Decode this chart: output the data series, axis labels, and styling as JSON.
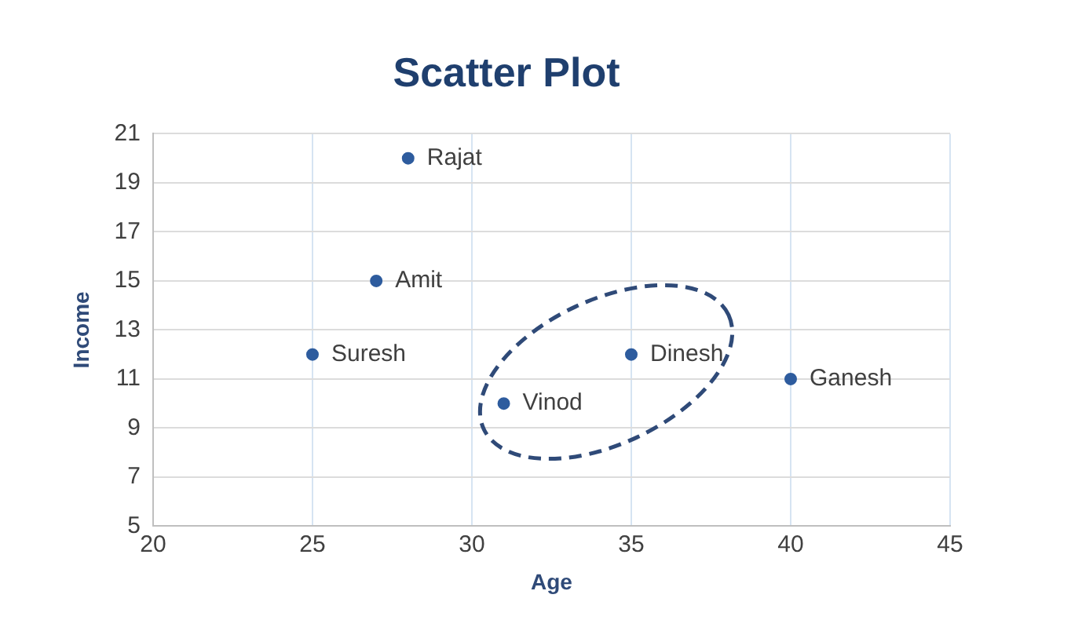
{
  "chart_data": {
    "type": "scatter",
    "title": "Scatter Plot",
    "xlabel": "Age",
    "ylabel": "Income",
    "x": [
      28,
      27,
      25,
      35,
      31,
      40
    ],
    "series": [
      {
        "color": "#2e5c9e",
        "values": [
          20,
          15,
          12,
          12,
          10,
          11
        ]
      }
    ],
    "xlim": [
      20,
      45
    ],
    "xticks": [
      20,
      25,
      30,
      35,
      40,
      45
    ],
    "ylim": [
      5,
      21
    ],
    "yticks": [
      5,
      7,
      9,
      11,
      13,
      15,
      17,
      19,
      21
    ],
    "grid": true,
    "legend": false,
    "marker": "circle",
    "annotations": [
      {
        "text": "Rajat",
        "x": 28,
        "y": 20
      },
      {
        "text": "Amit",
        "x": 27,
        "y": 15
      },
      {
        "text": "Suresh",
        "x": 25,
        "y": 12
      },
      {
        "text": "Dinesh",
        "x": 35,
        "y": 12
      },
      {
        "text": "Vinod",
        "x": 31,
        "y": 10
      },
      {
        "text": "Ganesh",
        "x": 40,
        "y": 11
      }
    ]
  }
}
